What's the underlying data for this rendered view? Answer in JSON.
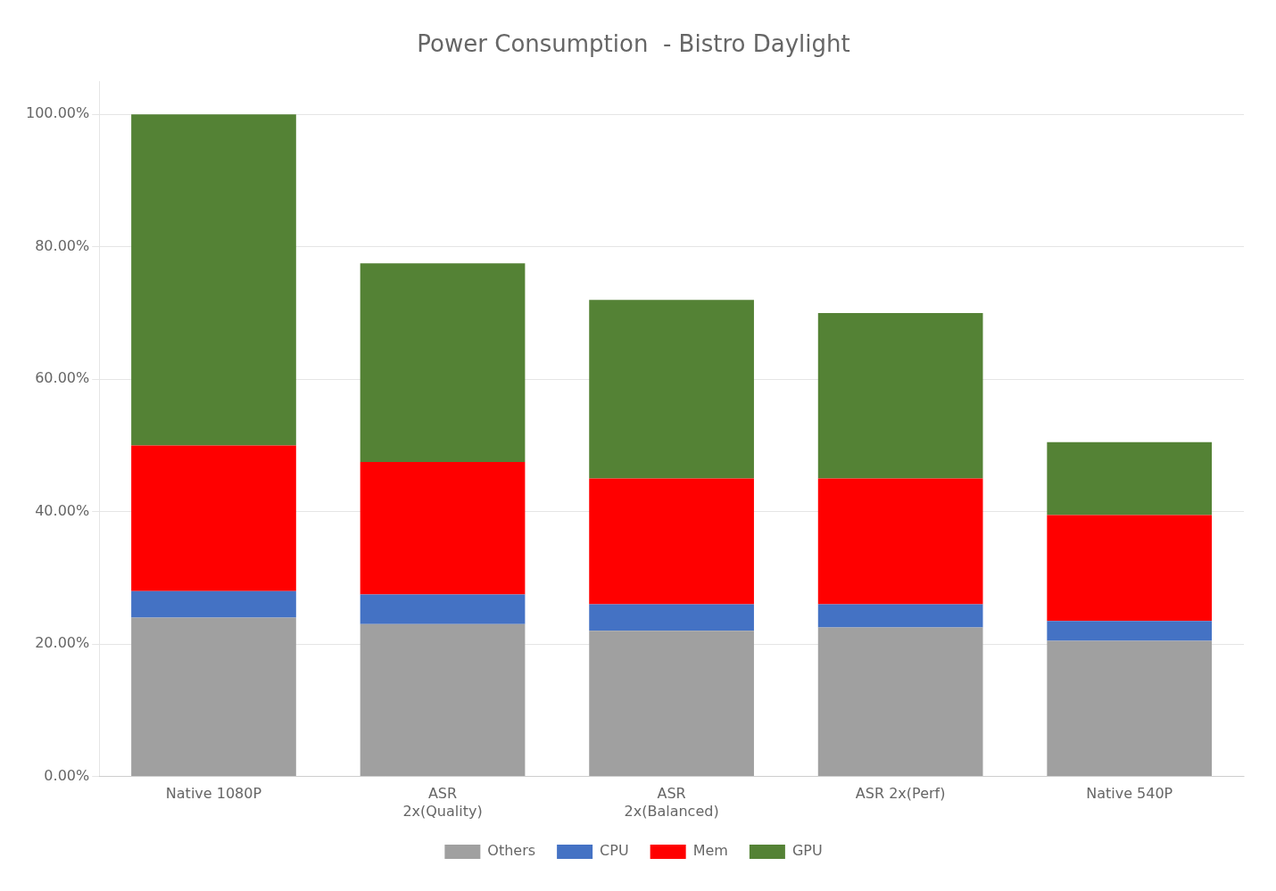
{
  "chart_data": {
    "type": "bar",
    "stacked": true,
    "title": "Power Consumption  - Bistro Daylight",
    "categories": [
      "Native 1080P",
      "ASR\n2x(Quality)",
      "ASR\n2x(Balanced)",
      "ASR 2x(Perf)",
      "Native 540P"
    ],
    "series": [
      {
        "name": "Others",
        "color": "#a0a0a0",
        "values": [
          0.24,
          0.23,
          0.22,
          0.225,
          0.205
        ]
      },
      {
        "name": "CPU",
        "color": "#4472c4",
        "values": [
          0.04,
          0.045,
          0.04,
          0.035,
          0.03
        ]
      },
      {
        "name": "Mem",
        "color": "#ff0000",
        "values": [
          0.22,
          0.2,
          0.19,
          0.19,
          0.16
        ]
      },
      {
        "name": "GPU",
        "color": "#548235",
        "values": [
          0.5,
          0.3,
          0.27,
          0.25,
          0.11
        ]
      }
    ],
    "ylim": [
      0,
      1.05
    ],
    "yticks": [
      {
        "value": 0.0,
        "label": "0.00%"
      },
      {
        "value": 0.2,
        "label": "20.00%"
      },
      {
        "value": 0.4,
        "label": "40.00%"
      },
      {
        "value": 0.6,
        "label": "60.00%"
      },
      {
        "value": 0.8,
        "label": "80.00%"
      },
      {
        "value": 1.0,
        "label": "100.00%"
      }
    ],
    "grid": true,
    "legend": "bottom"
  }
}
